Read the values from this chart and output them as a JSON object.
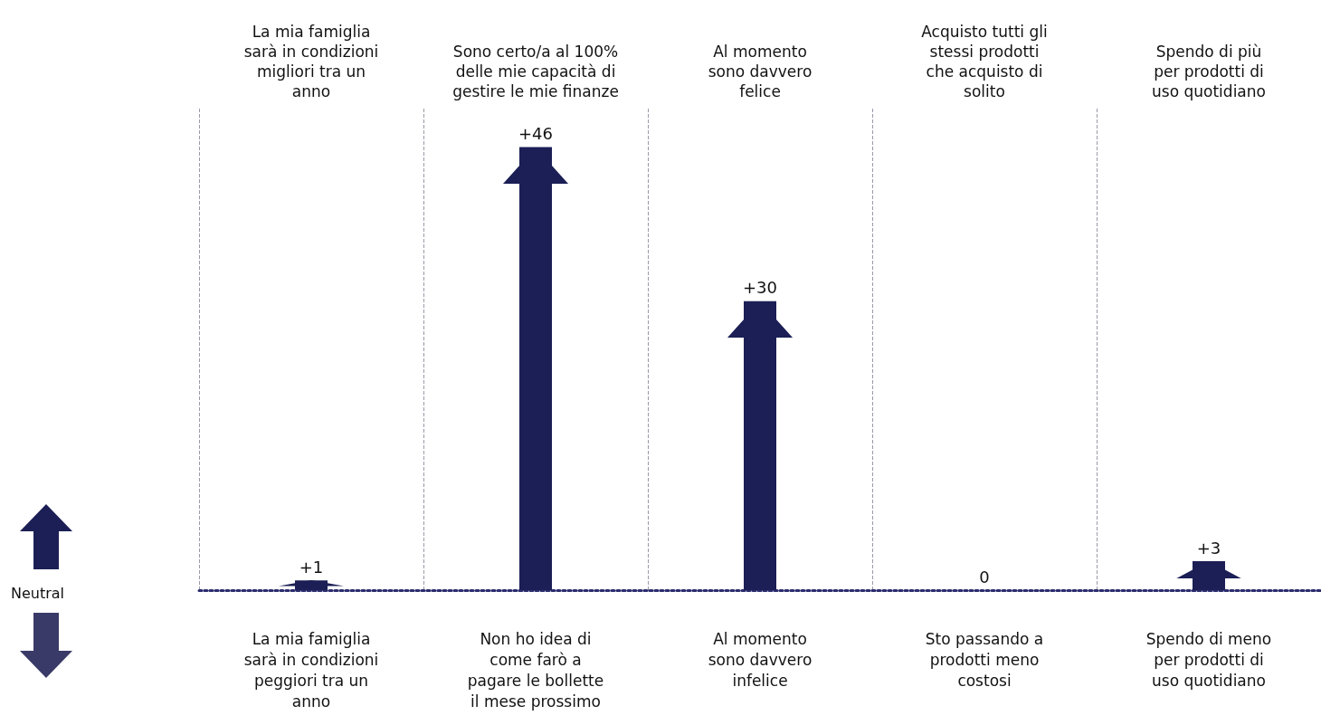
{
  "chart_data": {
    "type": "bar",
    "categories": [
      "La mia famiglia\nsarà in condizioni\nmigliori tra un\nanno",
      "Sono certo/a al 100%\ndelle mie capacità di\ngestire le mie finanze",
      "Al momento\nsono davvero\nfelice",
      "Acquisto tutti gli\nstessi prodotti\nche acquisto di\nsolito",
      "Spendo di più\nper prodotti di\nuso quotidiano"
    ],
    "values": [
      1,
      46,
      30,
      0,
      3
    ],
    "value_labels": [
      "+1",
      "+46",
      "+30",
      "0",
      "+3"
    ],
    "color": "#1b1f55",
    "grid": "x",
    "annotations": [
      "La mia famiglia\nsarà in condizioni\npeggiori tra un\nanno",
      "Non ho idea di\ncome farò a\npagare le bollette\nil mese prossimo",
      "Al momento\nsono davvero\ninfelice",
      "Sto passando a\nprodotti meno\ncostosi",
      "Spendo di meno\nper prodotti di\nuso quotidiano",
      "Neutral"
    ]
  }
}
